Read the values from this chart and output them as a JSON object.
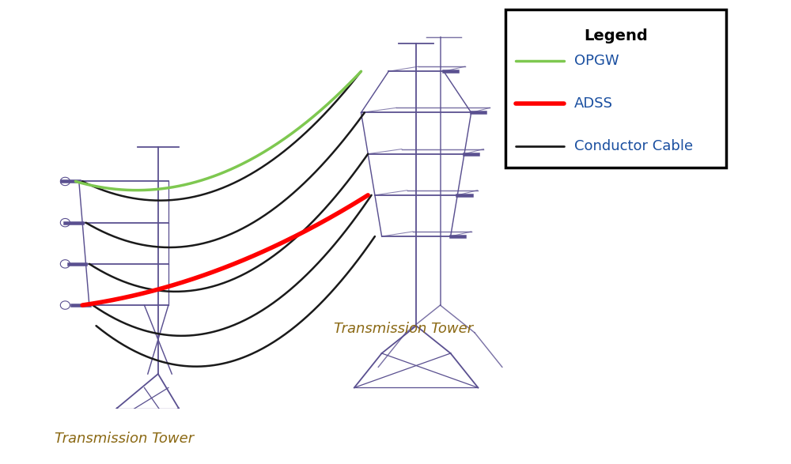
{
  "background_color": "#ffffff",
  "tower_color": "#5a5090",
  "opgw_color": "#7ec850",
  "adss_color": "#ff0000",
  "conductor_color": "#1a1a1a",
  "legend_title": "Legend",
  "legend_items": [
    "OPGW",
    "ADSS",
    "Conductor Cable"
  ],
  "legend_colors": [
    "#7ec850",
    "#ff0000",
    "#1a1a1a"
  ],
  "tower1_label": "Transmission Tower",
  "tower2_label": "Transmission Tower",
  "legend_title_fontsize": 14,
  "legend_fontsize": 13,
  "label_fontsize": 13,
  "label_color": "#8B6914",
  "fig_width": 10.0,
  "fig_height": 5.87,
  "legend_text_color": "#1a4fa0",
  "xlim": [
    0,
    10
  ],
  "ylim": [
    0,
    5.87
  ]
}
